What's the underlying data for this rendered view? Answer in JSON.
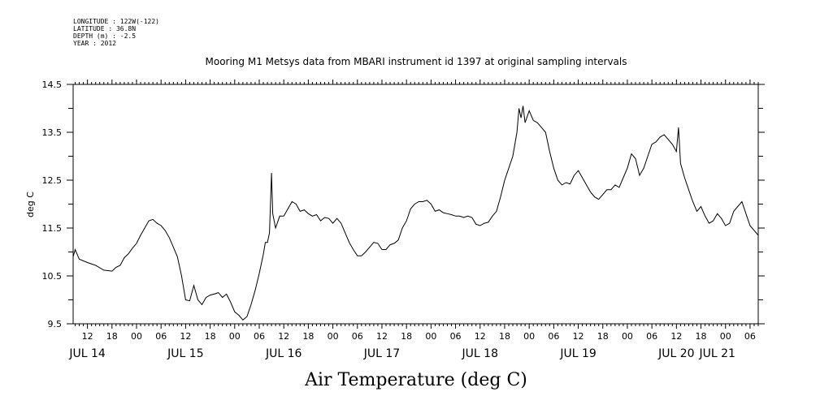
{
  "metadata": {
    "longitude": "LONGITUDE : 122W(-122)",
    "latitude": "LATITUDE : 36.8N",
    "depth": "DEPTH (m) : -2.5",
    "year": "YEAR : 2012"
  },
  "chart_data": {
    "type": "line",
    "title": "Mooring M1 Metsys data from MBARI instrument id 1397 at original sampling intervals",
    "xlabel": "Air Temperature (deg C)",
    "ylabel": "deg C",
    "ylim": [
      9.5,
      14.5
    ],
    "yticks": [
      "9.5",
      "10.5",
      "11.5",
      "12.5",
      "13.5",
      "14.5"
    ],
    "x_hour_labels": [
      "12",
      "18",
      "00",
      "06",
      "12",
      "18",
      "00",
      "06",
      "12",
      "18",
      "00",
      "06",
      "12",
      "18",
      "00",
      "06",
      "12",
      "18",
      "00",
      "06",
      "12",
      "18",
      "00",
      "06",
      "12",
      "18",
      "00",
      "06"
    ],
    "x_date_labels": [
      "JUL 14",
      "JUL 15",
      "JUL 16",
      "JUL 17",
      "JUL 18",
      "JUL 19",
      "JUL 20",
      "JUL 21"
    ],
    "x_units": "hours since 2012-07-14 00:00",
    "xlim": [
      8.5,
      176
    ],
    "grid": false,
    "series": [
      {
        "points": [
          [
            8.5,
            10.9
          ],
          [
            9,
            11.05
          ],
          [
            10,
            10.85
          ],
          [
            12,
            10.78
          ],
          [
            14,
            10.72
          ],
          [
            16,
            10.62
          ],
          [
            18,
            10.6
          ],
          [
            19,
            10.68
          ],
          [
            20,
            10.72
          ],
          [
            21,
            10.88
          ],
          [
            22,
            10.96
          ],
          [
            23,
            11.08
          ],
          [
            24,
            11.18
          ],
          [
            25,
            11.35
          ],
          [
            26,
            11.5
          ],
          [
            27,
            11.65
          ],
          [
            28,
            11.68
          ],
          [
            29,
            11.6
          ],
          [
            30,
            11.55
          ],
          [
            31,
            11.45
          ],
          [
            32,
            11.3
          ],
          [
            33,
            11.1
          ],
          [
            34,
            10.9
          ],
          [
            35,
            10.5
          ],
          [
            36,
            10.0
          ],
          [
            37,
            9.98
          ],
          [
            38,
            10.3
          ],
          [
            39,
            10.0
          ],
          [
            40,
            9.9
          ],
          [
            41,
            10.05
          ],
          [
            42,
            10.1
          ],
          [
            43,
            10.12
          ],
          [
            44,
            10.15
          ],
          [
            45,
            10.05
          ],
          [
            46,
            10.12
          ],
          [
            47,
            9.95
          ],
          [
            48,
            9.75
          ],
          [
            49,
            9.68
          ],
          [
            50,
            9.58
          ],
          [
            51,
            9.65
          ],
          [
            52,
            9.9
          ],
          [
            53,
            10.2
          ],
          [
            54,
            10.55
          ],
          [
            55,
            10.95
          ],
          [
            55.5,
            11.2
          ],
          [
            56,
            11.2
          ],
          [
            56.5,
            11.4
          ],
          [
            57,
            12.65
          ],
          [
            57.3,
            11.8
          ],
          [
            58,
            11.5
          ],
          [
            59,
            11.75
          ],
          [
            60,
            11.75
          ],
          [
            61,
            11.9
          ],
          [
            62,
            12.05
          ],
          [
            63,
            12.0
          ],
          [
            64,
            11.85
          ],
          [
            65,
            11.88
          ],
          [
            66,
            11.8
          ],
          [
            67,
            11.75
          ],
          [
            68,
            11.78
          ],
          [
            69,
            11.65
          ],
          [
            70,
            11.72
          ],
          [
            71,
            11.7
          ],
          [
            72,
            11.6
          ],
          [
            73,
            11.7
          ],
          [
            74,
            11.6
          ],
          [
            75,
            11.4
          ],
          [
            76,
            11.2
          ],
          [
            77,
            11.05
          ],
          [
            78,
            10.92
          ],
          [
            79,
            10.92
          ],
          [
            80,
            11.0
          ],
          [
            81,
            11.1
          ],
          [
            82,
            11.2
          ],
          [
            83,
            11.18
          ],
          [
            84,
            11.05
          ],
          [
            85,
            11.05
          ],
          [
            86,
            11.15
          ],
          [
            87,
            11.18
          ],
          [
            88,
            11.25
          ],
          [
            89,
            11.5
          ],
          [
            90,
            11.65
          ],
          [
            91,
            11.9
          ],
          [
            92,
            12.0
          ],
          [
            93,
            12.05
          ],
          [
            94,
            12.05
          ],
          [
            95,
            12.08
          ],
          [
            96,
            12.0
          ],
          [
            97,
            11.85
          ],
          [
            98,
            11.88
          ],
          [
            99,
            11.82
          ],
          [
            100,
            11.8
          ],
          [
            101,
            11.78
          ],
          [
            102,
            11.75
          ],
          [
            103,
            11.75
          ],
          [
            104,
            11.72
          ],
          [
            105,
            11.75
          ],
          [
            106,
            11.72
          ],
          [
            107,
            11.58
          ],
          [
            108,
            11.55
          ],
          [
            109,
            11.6
          ],
          [
            110,
            11.62
          ],
          [
            111,
            11.75
          ],
          [
            112,
            11.85
          ],
          [
            113,
            12.15
          ],
          [
            114,
            12.5
          ],
          [
            115,
            12.75
          ],
          [
            116,
            13.0
          ],
          [
            117,
            13.5
          ],
          [
            117.5,
            14.0
          ],
          [
            118,
            13.8
          ],
          [
            118.5,
            14.05
          ],
          [
            119,
            13.7
          ],
          [
            120,
            13.95
          ],
          [
            121,
            13.75
          ],
          [
            122,
            13.7
          ],
          [
            123,
            13.6
          ],
          [
            124,
            13.5
          ],
          [
            125,
            13.1
          ],
          [
            126,
            12.75
          ],
          [
            127,
            12.5
          ],
          [
            128,
            12.4
          ],
          [
            129,
            12.45
          ],
          [
            130,
            12.42
          ],
          [
            131,
            12.6
          ],
          [
            132,
            12.7
          ],
          [
            133,
            12.55
          ],
          [
            134,
            12.4
          ],
          [
            135,
            12.25
          ],
          [
            136,
            12.15
          ],
          [
            137,
            12.1
          ],
          [
            138,
            12.2
          ],
          [
            139,
            12.3
          ],
          [
            140,
            12.3
          ],
          [
            141,
            12.4
          ],
          [
            142,
            12.35
          ],
          [
            143,
            12.55
          ],
          [
            144,
            12.75
          ],
          [
            145,
            13.05
          ],
          [
            146,
            12.95
          ],
          [
            147,
            12.6
          ],
          [
            148,
            12.75
          ],
          [
            149,
            13.0
          ],
          [
            150,
            13.25
          ],
          [
            151,
            13.3
          ],
          [
            152,
            13.4
          ],
          [
            153,
            13.45
          ],
          [
            154,
            13.35
          ],
          [
            155,
            13.25
          ],
          [
            156,
            13.1
          ],
          [
            156.5,
            13.6
          ],
          [
            157,
            12.85
          ],
          [
            158,
            12.55
          ],
          [
            159,
            12.3
          ],
          [
            160,
            12.05
          ],
          [
            161,
            11.85
          ],
          [
            162,
            11.95
          ],
          [
            163,
            11.75
          ],
          [
            164,
            11.6
          ],
          [
            165,
            11.65
          ],
          [
            166,
            11.8
          ],
          [
            167,
            11.7
          ],
          [
            168,
            11.55
          ],
          [
            169,
            11.6
          ],
          [
            170,
            11.85
          ],
          [
            171,
            11.95
          ],
          [
            172,
            12.05
          ],
          [
            173,
            11.8
          ],
          [
            174,
            11.55
          ],
          [
            176,
            11.35
          ]
        ]
      }
    ]
  }
}
